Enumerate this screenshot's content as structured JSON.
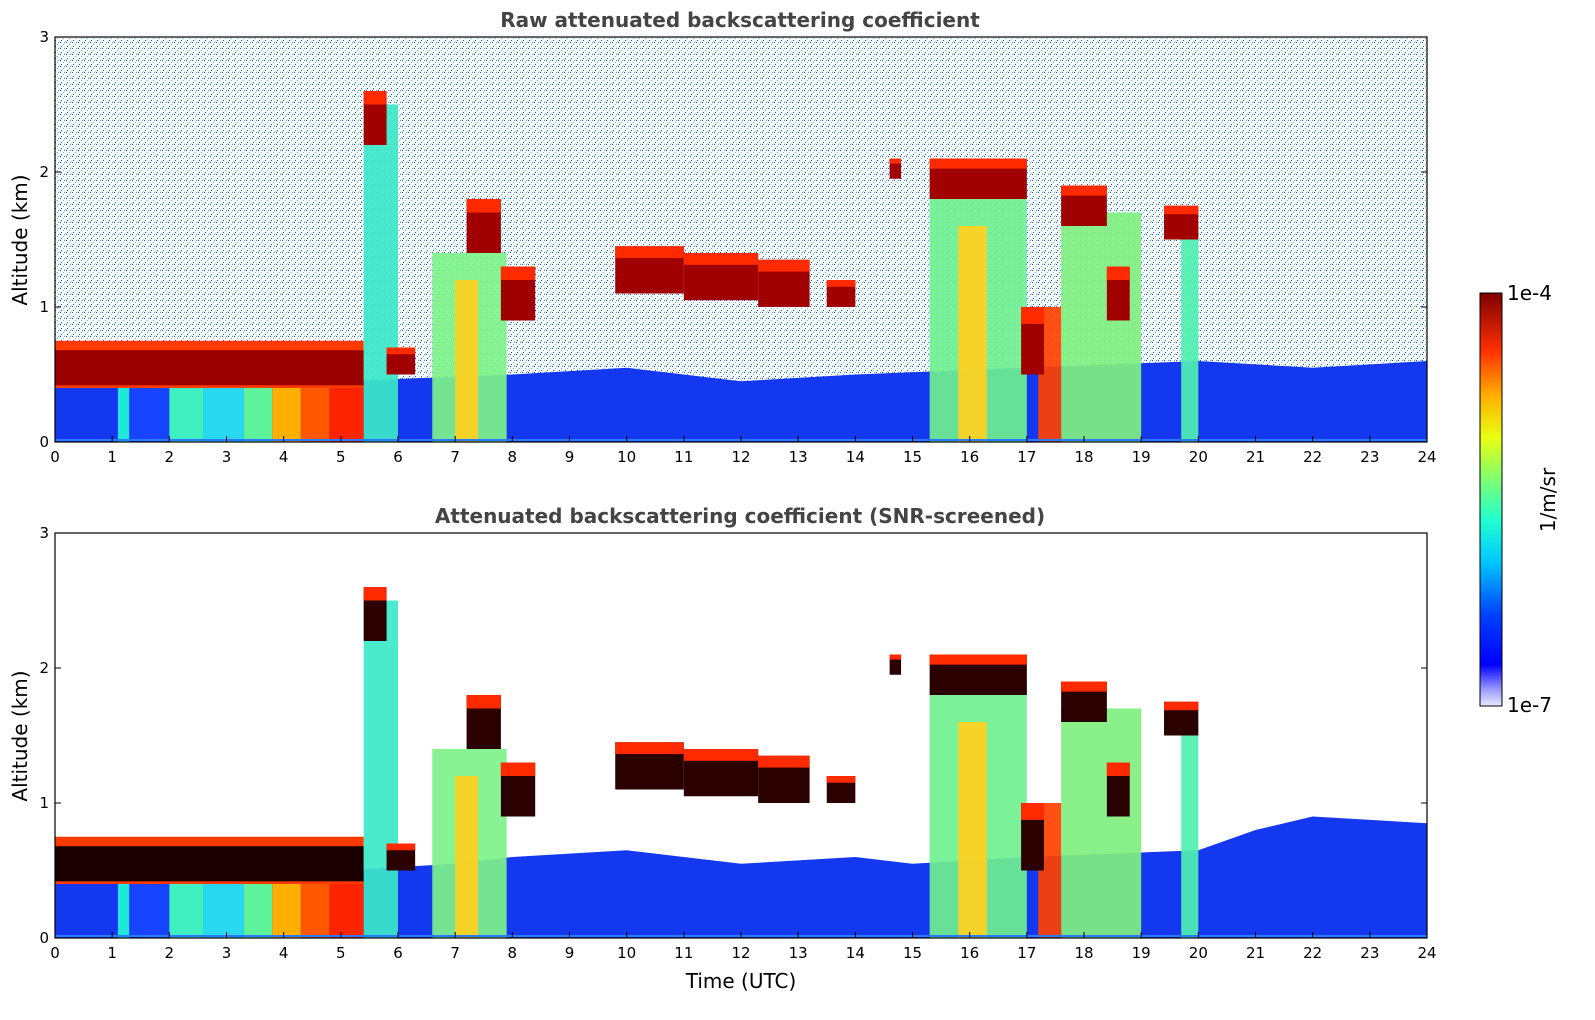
{
  "chart_data": [
    {
      "type": "heatmap",
      "title": "Raw attenuated backscattering coefficient",
      "xlabel": "",
      "ylabel": "Altitude (km)",
      "xlim": [
        0,
        24
      ],
      "ylim": [
        0,
        3
      ],
      "x_ticks": [
        "0",
        "1",
        "2",
        "3",
        "4",
        "5",
        "6",
        "7",
        "8",
        "9",
        "10",
        "11",
        "12",
        "13",
        "14",
        "15",
        "16",
        "17",
        "18",
        "19",
        "20",
        "21",
        "22",
        "23",
        "24"
      ],
      "y_ticks": [
        "0",
        "1",
        "2",
        "3"
      ],
      "features": [
        {
          "x0": 0,
          "x1": 5.4,
          "y0": 0.35,
          "y1": 0.75,
          "level": "high"
        },
        {
          "x0": 5.4,
          "x1": 5.8,
          "y0": 2.2,
          "y1": 2.6,
          "level": "high"
        },
        {
          "x0": 9.8,
          "x1": 13.2,
          "y0": 1.0,
          "y1": 1.5,
          "level": "high"
        },
        {
          "x0": 15.3,
          "x1": 17.0,
          "y0": 1.8,
          "y1": 2.1,
          "level": "high"
        },
        {
          "x0": 17.6,
          "x1": 18.4,
          "y0": 1.6,
          "y1": 1.9,
          "level": "high"
        },
        {
          "x0": 19.4,
          "x1": 20.0,
          "y0": 1.5,
          "y1": 1.75,
          "level": "high"
        }
      ]
    },
    {
      "type": "heatmap",
      "title": "Attenuated backscattering coefficient (SNR-screened)",
      "xlabel": "Time (UTC)",
      "ylabel": "Altitude (km)",
      "xlim": [
        0,
        24
      ],
      "ylim": [
        0,
        3
      ],
      "x_ticks": [
        "0",
        "1",
        "2",
        "3",
        "4",
        "5",
        "6",
        "7",
        "8",
        "9",
        "10",
        "11",
        "12",
        "13",
        "14",
        "15",
        "16",
        "17",
        "18",
        "19",
        "20",
        "21",
        "22",
        "23",
        "24"
      ],
      "y_ticks": [
        "0",
        "1",
        "2",
        "3"
      ],
      "screened": true
    }
  ],
  "colorbar": {
    "label": "1/m/sr",
    "max_label": "1e-4",
    "min_label": "1e-7",
    "range": [
      1e-07,
      0.0001
    ],
    "scale": "log",
    "colormap": "jet"
  }
}
